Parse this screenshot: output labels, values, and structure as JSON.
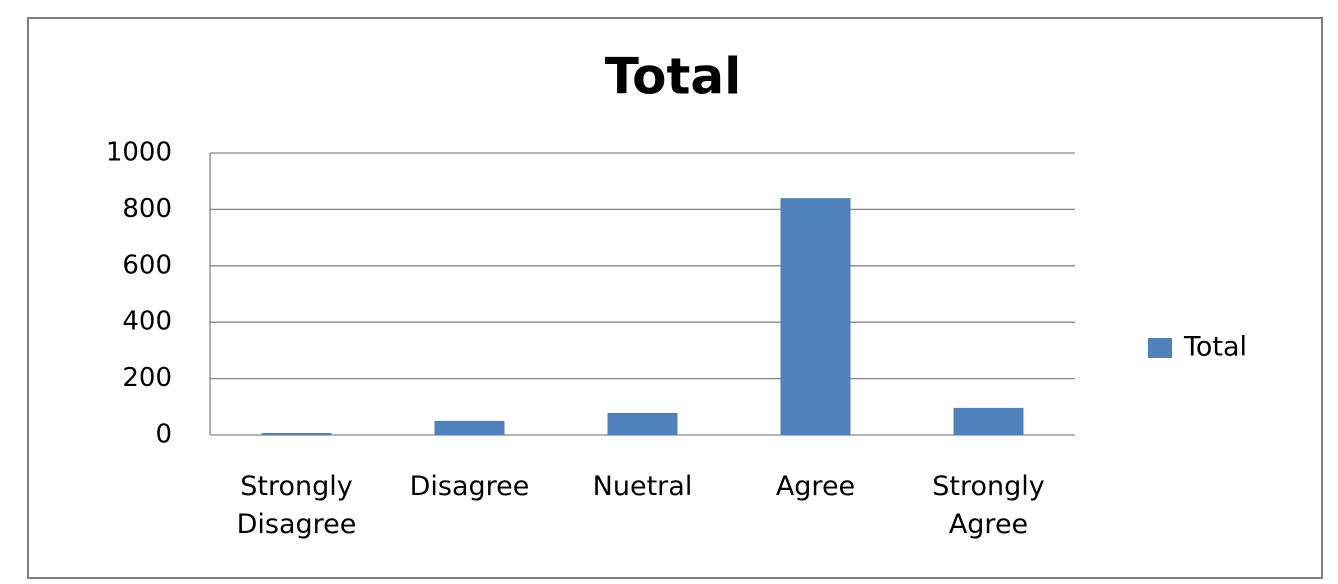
{
  "chart_data": {
    "type": "bar",
    "title": "Total",
    "categories": [
      "Strongly Disagree",
      "Disagree",
      "Nuetral",
      "Agree",
      "Strongly Agree"
    ],
    "series": [
      {
        "name": "Total",
        "color": "#4f81bd",
        "values": [
          7,
          50,
          78,
          840,
          96
        ]
      }
    ],
    "ylim": [
      0,
      1000
    ],
    "yticks": [
      0,
      200,
      400,
      600,
      800,
      1000
    ],
    "grid": true,
    "legend": "right"
  }
}
